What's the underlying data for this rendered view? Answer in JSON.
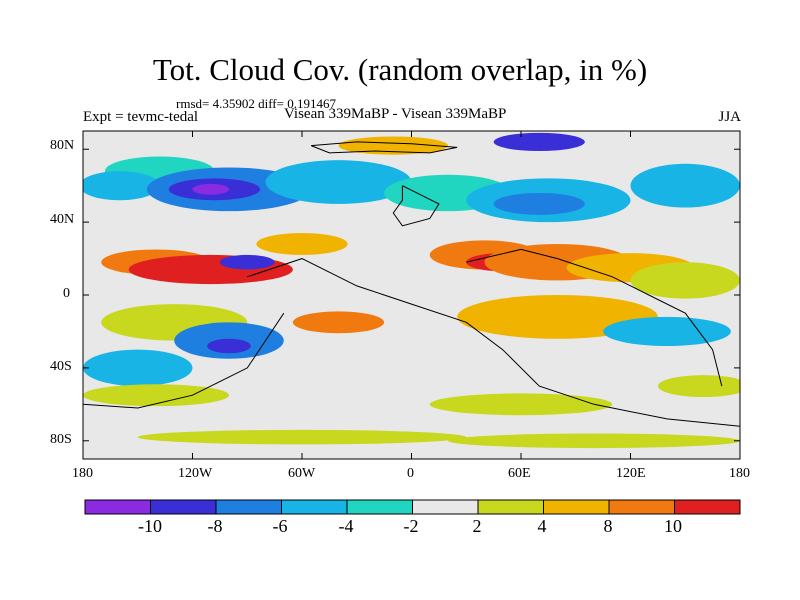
{
  "title": "Tot. Cloud Cov. (random overlap, in %)",
  "stats": "rmsd= 4.35902 diff= 0.191467",
  "experiment_label": "Expt = tevmc-tedal",
  "experiment_names": "Visean 339MaBP - Visean 339MaBP",
  "season": "JJA",
  "lat_ticks": [
    "80N",
    "40N",
    "0",
    "40S",
    "80S"
  ],
  "lon_ticks": [
    "180",
    "120W",
    "60W",
    "0",
    "60E",
    "120E",
    "180"
  ],
  "colorbar": {
    "colors": [
      "#8a2be2",
      "#3a2fd6",
      "#1f7fe0",
      "#19b4e6",
      "#20d6c0",
      "#e8e8e8",
      "#c8d81e",
      "#f0b400",
      "#f07a10",
      "#e02020"
    ],
    "labels": [
      "-10",
      "-8",
      "-6",
      "-4",
      "-2",
      "2",
      "4",
      "8",
      "10"
    ]
  },
  "field_blobs": [
    {
      "lon": -138,
      "lat": 68,
      "rx": 30,
      "ry": 8,
      "level": 4
    },
    {
      "lon": -160,
      "lat": 60,
      "rx": 22,
      "ry": 8,
      "level": 3
    },
    {
      "lon": -100,
      "lat": 58,
      "rx": 45,
      "ry": 12,
      "level": 2
    },
    {
      "lon": -108,
      "lat": 58,
      "rx": 25,
      "ry": 6,
      "level": 1
    },
    {
      "lon": -110,
      "lat": 58,
      "rx": 10,
      "ry": 3,
      "level": 0
    },
    {
      "lon": -40,
      "lat": 62,
      "rx": 40,
      "ry": 12,
      "level": 3
    },
    {
      "lon": 20,
      "lat": 56,
      "rx": 35,
      "ry": 10,
      "level": 4
    },
    {
      "lon": 75,
      "lat": 52,
      "rx": 45,
      "ry": 12,
      "level": 3
    },
    {
      "lon": 70,
      "lat": 50,
      "rx": 25,
      "ry": 6,
      "level": 2
    },
    {
      "lon": 150,
      "lat": 60,
      "rx": 30,
      "ry": 12,
      "level": 3
    },
    {
      "lon": 70,
      "lat": 84,
      "rx": 25,
      "ry": 5,
      "level": 1
    },
    {
      "lon": -10,
      "lat": 82,
      "rx": 30,
      "ry": 5,
      "level": 7
    },
    {
      "lon": -140,
      "lat": 18,
      "rx": 30,
      "ry": 7,
      "level": 8
    },
    {
      "lon": -110,
      "lat": 14,
      "rx": 45,
      "ry": 8,
      "level": 9
    },
    {
      "lon": -90,
      "lat": 18,
      "rx": 15,
      "ry": 4,
      "level": 1
    },
    {
      "lon": -60,
      "lat": 28,
      "rx": 25,
      "ry": 6,
      "level": 7
    },
    {
      "lon": 40,
      "lat": 22,
      "rx": 30,
      "ry": 8,
      "level": 8
    },
    {
      "lon": 50,
      "lat": 18,
      "rx": 20,
      "ry": 5,
      "level": 9
    },
    {
      "lon": 80,
      "lat": 18,
      "rx": 40,
      "ry": 10,
      "level": 8
    },
    {
      "lon": 120,
      "lat": 15,
      "rx": 35,
      "ry": 8,
      "level": 7
    },
    {
      "lon": 150,
      "lat": 8,
      "rx": 30,
      "ry": 10,
      "level": 6
    },
    {
      "lon": -130,
      "lat": -15,
      "rx": 40,
      "ry": 10,
      "level": 6
    },
    {
      "lon": -100,
      "lat": -25,
      "rx": 30,
      "ry": 10,
      "level": 2
    },
    {
      "lon": -100,
      "lat": -28,
      "rx": 12,
      "ry": 4,
      "level": 1
    },
    {
      "lon": -40,
      "lat": -15,
      "rx": 25,
      "ry": 6,
      "level": 8
    },
    {
      "lon": 80,
      "lat": -12,
      "rx": 55,
      "ry": 12,
      "level": 7
    },
    {
      "lon": 140,
      "lat": -20,
      "rx": 35,
      "ry": 8,
      "level": 3
    },
    {
      "lon": -150,
      "lat": -40,
      "rx": 30,
      "ry": 10,
      "level": 3
    },
    {
      "lon": -140,
      "lat": -55,
      "rx": 40,
      "ry": 6,
      "level": 6
    },
    {
      "lon": 60,
      "lat": -60,
      "rx": 50,
      "ry": 6,
      "level": 6
    },
    {
      "lon": 160,
      "lat": -50,
      "rx": 25,
      "ry": 6,
      "level": 6
    },
    {
      "lon": -60,
      "lat": -78,
      "rx": 90,
      "ry": 4,
      "level": 6
    },
    {
      "lon": 100,
      "lat": -80,
      "rx": 80,
      "ry": 4,
      "level": 6
    }
  ]
}
